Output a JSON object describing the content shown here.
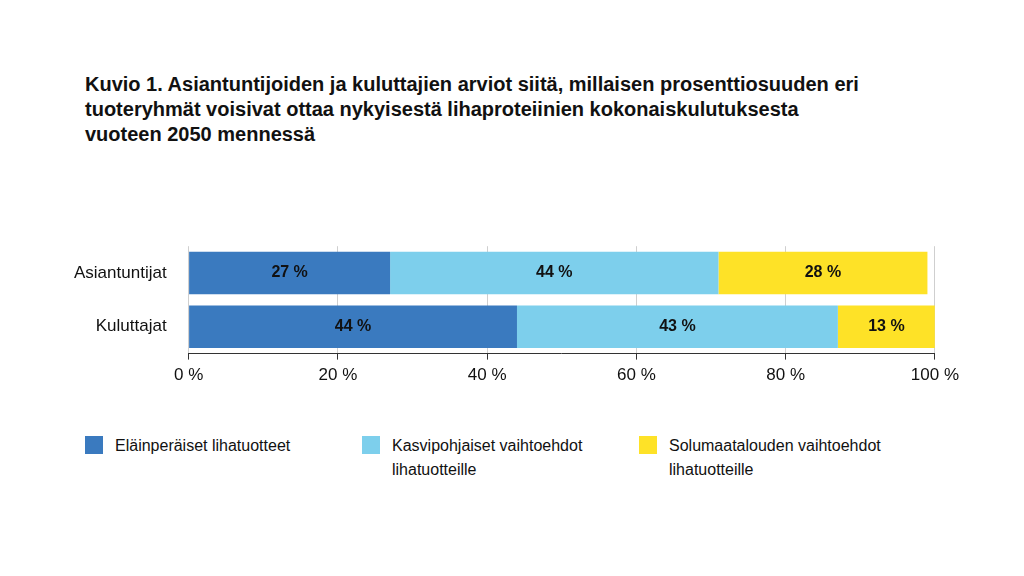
{
  "chart_data": {
    "type": "bar",
    "orientation": "horizontal",
    "stacked": true,
    "title": "Kuvio 1. Asiantuntijoiden ja kuluttajien arviot siitä, millaisen prosenttiosuuden eri tuoteryhmät voisivat ottaa nykyisestä lihaproteiinien kokonaiskulutuksesta vuoteen 2050 mennessä",
    "categories": [
      "Asiantuntijat",
      "Kuluttajat"
    ],
    "series": [
      {
        "name": "Eläinperäiset lihatuotteet",
        "color": "#3a7abf",
        "values": [
          27,
          44
        ],
        "value_labels": [
          "27 %",
          "44 %"
        ]
      },
      {
        "name": "Kasvipohjaiset vaihtoehdot lihatuotteille",
        "color": "#7dcfec",
        "values": [
          44,
          43
        ],
        "value_labels": [
          "44 %",
          "43 %"
        ]
      },
      {
        "name": "Solumaatalouden vaihtoehdot lihatuotteille",
        "color": "#fee227",
        "values": [
          28,
          13
        ],
        "value_labels": [
          "28 %",
          "13 %"
        ]
      }
    ],
    "xlim": [
      0,
      100
    ],
    "xticks": [
      {
        "value": 0,
        "label": "0 %"
      },
      {
        "value": 20,
        "label": "20 %"
      },
      {
        "value": 40,
        "label": "40 %"
      },
      {
        "value": 60,
        "label": "60 %"
      },
      {
        "value": 80,
        "label": "80 %"
      },
      {
        "value": 100,
        "label": "100 %"
      }
    ],
    "grid": true,
    "data_labels": true,
    "legend": "bottom"
  }
}
